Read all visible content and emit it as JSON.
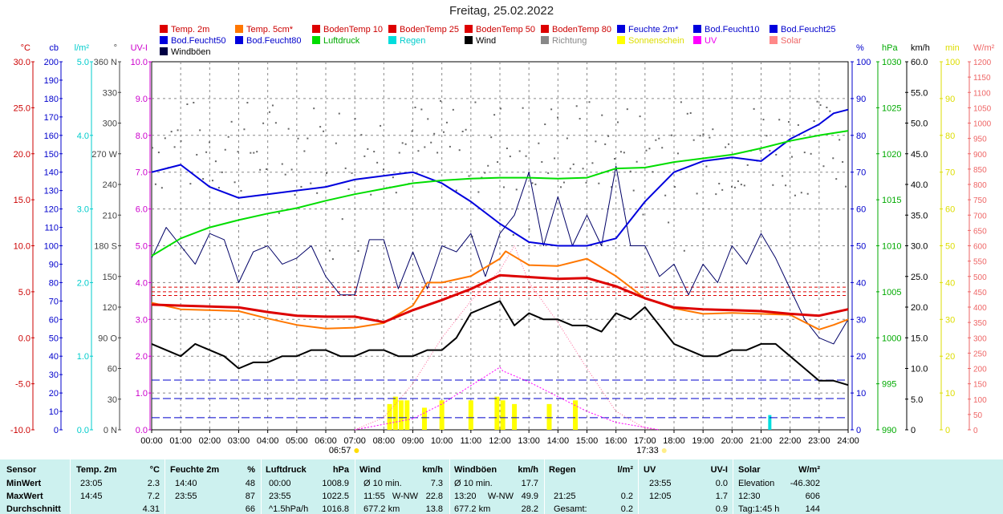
{
  "title": "Freitag, 25.02.2022",
  "legend": [
    {
      "label": "Temp. 2m",
      "color": "#dd0000",
      "text_color": "#cc0000"
    },
    {
      "label": "Temp. 5cm*",
      "color": "#ff7700",
      "text_color": "#cc0000"
    },
    {
      "label": "BodenTemp 10",
      "color": "#dd0000",
      "text_color": "#cc0000"
    },
    {
      "label": "BodenTemp 25",
      "color": "#dd0000",
      "text_color": "#cc0000"
    },
    {
      "label": "BodenTemp 50",
      "color": "#dd0000",
      "text_color": "#cc0000"
    },
    {
      "label": "BodenTemp 80",
      "color": "#dd0000",
      "text_color": "#cc0000"
    },
    {
      "label": "Feuchte 2m*",
      "color": "#0000dd",
      "text_color": "#0000cc"
    },
    {
      "label": "Bod.Feucht10",
      "color": "#0000dd",
      "text_color": "#0000cc"
    },
    {
      "label": "Bod.Feucht25",
      "color": "#0000dd",
      "text_color": "#0000cc"
    },
    {
      "label": "Bod.Feucht50",
      "color": "#0000dd",
      "text_color": "#0000cc"
    },
    {
      "label": "Bod.Feucht80",
      "color": "#0000dd",
      "text_color": "#0000cc"
    },
    {
      "label": "Luftdruck",
      "color": "#00dd00",
      "text_color": "#00aa00"
    },
    {
      "label": "Regen",
      "color": "#00dddd",
      "text_color": "#00cccc"
    },
    {
      "label": "Wind",
      "color": "#000000",
      "text_color": "#000000"
    },
    {
      "label": "Richtung",
      "color": "#888888",
      "text_color": "#888888"
    },
    {
      "label": "Sonnenschein",
      "color": "#ffff00",
      "text_color": "#dddd00"
    },
    {
      "label": "UV",
      "color": "#ff00ff",
      "text_color": "#ee00ee"
    },
    {
      "label": "Solar",
      "color": "#ff8888",
      "text_color": "#ee6666"
    },
    {
      "label": "Windböen",
      "color": "#000044",
      "text_color": "#000000"
    }
  ],
  "axes": {
    "temp": {
      "unit": "°C",
      "ticks": [
        "30.0",
        "25.0",
        "20.0",
        "15.0",
        "10.0",
        "5.0",
        "0.0",
        "-5.0",
        "-10.0"
      ],
      "color": "#cc0000"
    },
    "cb": {
      "unit": "cb",
      "ticks": [
        "200",
        "190",
        "180",
        "170",
        "160",
        "150",
        "140",
        "130",
        "120",
        "110",
        "100",
        "90",
        "80",
        "70",
        "60",
        "50",
        "40",
        "30",
        "20",
        "10",
        "0"
      ],
      "color": "#0000cc"
    },
    "rain": {
      "unit": "l/m²",
      "ticks": [
        "5.0",
        "4.0",
        "3.0",
        "2.0",
        "1.0",
        "0.0"
      ],
      "color": "#00cccc"
    },
    "dir": {
      "unit": "°",
      "ticks": [
        "360 N",
        "330",
        "300",
        "270 W",
        "240",
        "210",
        "180 S",
        "150",
        "120",
        "90 O",
        "60",
        "30",
        "0 N"
      ],
      "color": "#444444"
    },
    "uvi": {
      "unit": "UV-I",
      "ticks": [
        "10.0",
        "9.0",
        "8.0",
        "7.0",
        "6.0",
        "5.0",
        "4.0",
        "3.0",
        "2.0",
        "1.0",
        "0.0"
      ],
      "color": "#cc00cc"
    },
    "hum": {
      "unit": "%",
      "ticks": [
        "100",
        "90",
        "80",
        "70",
        "60",
        "50",
        "40",
        "30",
        "20",
        "10",
        "0"
      ],
      "color": "#0000cc"
    },
    "hpa": {
      "unit": "hPa",
      "ticks": [
        "1030",
        "1025",
        "1020",
        "1015",
        "1010",
        "1005",
        "1000",
        "995",
        "990"
      ],
      "color": "#00aa00"
    },
    "kmh": {
      "unit": "km/h",
      "ticks": [
        "60.0",
        "55.0",
        "50.0",
        "45.0",
        "40.0",
        "35.0",
        "30.0",
        "25.0",
        "20.0",
        "15.0",
        "10.0",
        "5.0",
        "0"
      ],
      "color": "#000000"
    },
    "min": {
      "unit": "min",
      "ticks": [
        "100",
        "90",
        "80",
        "70",
        "60",
        "50",
        "40",
        "30",
        "20",
        "10",
        "0"
      ],
      "color": "#dddd00"
    },
    "solar": {
      "unit": "W/m²",
      "ticks": [
        "1200",
        "1150",
        "1100",
        "1050",
        "1000",
        "950",
        "900",
        "850",
        "800",
        "750",
        "700",
        "650",
        "600",
        "550",
        "500",
        "450",
        "400",
        "350",
        "300",
        "250",
        "200",
        "150",
        "100",
        "50",
        "0"
      ],
      "color": "#ee6666"
    }
  },
  "x_ticks": [
    "00:00",
    "01:00",
    "02:00",
    "03:00",
    "04:00",
    "05:00",
    "06:00",
    "07:00",
    "08:00",
    "09:00",
    "10:00",
    "11:00",
    "12:00",
    "13:00",
    "14:00",
    "15:00",
    "16:00",
    "17:00",
    "18:00",
    "19:00",
    "20:00",
    "21:00",
    "22:00",
    "23:00",
    "24:00"
  ],
  "sunrise": "06:57",
  "sunset": "17:33",
  "chart_data": {
    "type": "line",
    "x_unit": "hour",
    "series": [
      {
        "name": "Temp. 2m",
        "axis": "temp",
        "color": "#dd0000",
        "width": 3,
        "x": [
          0,
          1,
          2,
          3,
          4,
          5,
          6,
          7,
          8,
          9,
          10,
          11,
          12,
          13,
          14,
          15,
          16,
          17,
          18,
          19,
          20,
          21,
          22,
          23,
          24
        ],
        "y": [
          3.6,
          3.5,
          3.4,
          3.3,
          2.8,
          2.4,
          2.3,
          2.3,
          1.7,
          3.0,
          4.1,
          5.3,
          6.8,
          6.6,
          6.4,
          6.5,
          5.6,
          4.3,
          3.3,
          3.1,
          3.0,
          2.9,
          2.6,
          2.4,
          3.1
        ]
      },
      {
        "name": "Temp. 5cm*",
        "axis": "temp",
        "color": "#ff7700",
        "width": 2,
        "x": [
          0,
          1,
          2,
          3,
          4,
          5,
          6,
          7,
          8,
          9,
          9.5,
          10,
          11,
          12,
          12.2,
          13,
          14,
          15,
          16,
          17,
          18,
          19,
          20,
          21,
          22,
          23,
          23.5,
          24
        ],
        "y": [
          3.8,
          3.1,
          3.0,
          2.9,
          2.1,
          1.4,
          1.0,
          1.1,
          1.6,
          3.5,
          6.0,
          6.0,
          6.7,
          8.6,
          9.4,
          7.9,
          7.8,
          8.6,
          6.7,
          4.3,
          3.2,
          2.6,
          2.7,
          2.6,
          2.5,
          0.9,
          1.4,
          2.0
        ]
      },
      {
        "name": "BodenTemp 10",
        "axis": "temp",
        "color": "#dd0000",
        "width": 1,
        "dash": "4,3",
        "x": [
          0,
          24
        ],
        "y": [
          5.5,
          5.5
        ]
      },
      {
        "name": "BodenTemp 25",
        "axis": "temp",
        "color": "#dd0000",
        "width": 1,
        "dash": "4,3",
        "x": [
          0,
          24
        ],
        "y": [
          5.0,
          5.0
        ]
      },
      {
        "name": "BodenTemp 50",
        "axis": "temp",
        "color": "#dd0000",
        "width": 1,
        "dash": "4,3",
        "x": [
          0,
          24
        ],
        "y": [
          4.6,
          4.6
        ]
      },
      {
        "name": "Feuchte 2m*",
        "axis": "hum",
        "color": "#0000dd",
        "width": 2,
        "x": [
          0,
          0.5,
          1,
          2,
          3,
          4,
          5,
          6,
          7,
          8,
          9,
          10,
          11,
          12,
          13,
          14,
          15,
          16,
          17,
          18,
          19,
          20,
          21,
          22,
          23,
          23.5,
          24
        ],
        "y": [
          70,
          71,
          72,
          66,
          63,
          64,
          65,
          66,
          68,
          69,
          70,
          67,
          62,
          56,
          51,
          50,
          50,
          52,
          62,
          70,
          73,
          74,
          73,
          79,
          83,
          86,
          87
        ]
      },
      {
        "name": "Bod.Feucht10",
        "axis": "hum",
        "color": "#0000cc",
        "width": 1,
        "dash": "10,4",
        "x": [
          0,
          24
        ],
        "y": [
          13.5,
          13.5
        ]
      },
      {
        "name": "Bod.Feucht25",
        "axis": "hum",
        "color": "#0000cc",
        "width": 1,
        "dash": "10,4",
        "x": [
          0,
          24
        ],
        "y": [
          8.5,
          8.5
        ]
      },
      {
        "name": "Bod.Feucht50",
        "axis": "hum",
        "color": "#0000cc",
        "width": 1,
        "dash": "10,4",
        "x": [
          0,
          24
        ],
        "y": [
          3.3,
          3.3
        ]
      },
      {
        "name": "Luftdruck",
        "axis": "hpa",
        "color": "#00dd00",
        "width": 2,
        "x": [
          0,
          1,
          2,
          3,
          4,
          5,
          6,
          7,
          8,
          9,
          10,
          11,
          12,
          13,
          14,
          15,
          16,
          17,
          18,
          19,
          20,
          21,
          22,
          23,
          24
        ],
        "y": [
          1008.9,
          1010.8,
          1012.0,
          1012.8,
          1013.5,
          1014.1,
          1014.9,
          1015.6,
          1016.2,
          1016.8,
          1017.1,
          1017.3,
          1017.4,
          1017.4,
          1017.3,
          1017.4,
          1018.4,
          1018.5,
          1019.1,
          1019.5,
          1019.9,
          1020.6,
          1021.4,
          1022.0,
          1022.5
        ]
      },
      {
        "name": "Wind",
        "axis": "kmh",
        "color": "#000000",
        "width": 2,
        "x": [
          0,
          0.5,
          1,
          1.5,
          2,
          2.5,
          3,
          3.5,
          4,
          4.5,
          5,
          5.5,
          6,
          6.5,
          7,
          7.5,
          8,
          8.5,
          9,
          9.5,
          10,
          10.5,
          11,
          11.5,
          12,
          12.5,
          13,
          13.5,
          14,
          14.5,
          15,
          15.5,
          16,
          16.5,
          17,
          17.5,
          18,
          18.5,
          19,
          19.5,
          20,
          20.5,
          21,
          21.5,
          22,
          22.5,
          23,
          23.5,
          24
        ],
        "y": [
          14,
          13,
          12,
          14,
          13,
          12,
          10,
          11,
          11,
          12,
          12,
          13,
          13,
          12,
          12,
          13,
          13,
          12,
          12,
          13,
          13,
          15,
          19,
          20,
          21,
          17,
          19,
          18,
          18,
          17,
          17,
          16,
          19,
          18,
          20,
          17,
          14,
          13,
          12,
          12,
          13,
          13,
          14,
          14,
          12,
          10,
          8,
          8,
          7.3
        ]
      },
      {
        "name": "Windböen",
        "axis": "kmh",
        "color": "#000066",
        "width": 1,
        "x": [
          0,
          0.5,
          1,
          1.5,
          2,
          2.5,
          3,
          3.5,
          4,
          4.5,
          5,
          5.5,
          6,
          6.5,
          7,
          7.5,
          8,
          8.5,
          9,
          9.5,
          10,
          10.5,
          11,
          11.5,
          12,
          12.5,
          13,
          13.5,
          14,
          14.5,
          15,
          15.5,
          16,
          16.5,
          17,
          17.5,
          18,
          18.5,
          19,
          19.5,
          20,
          20.5,
          21,
          21.5,
          22,
          22.5,
          23,
          23.5,
          24
        ],
        "y": [
          28,
          33,
          30,
          27,
          32,
          31,
          24,
          29,
          30,
          27,
          28,
          30,
          25,
          22,
          22,
          31,
          31,
          23,
          29,
          23,
          30,
          29,
          32,
          25,
          32,
          35,
          42,
          30,
          38,
          30,
          35,
          30,
          43,
          30,
          30,
          25,
          27,
          22,
          27,
          24,
          30,
          27,
          32,
          28,
          23,
          18,
          15,
          14,
          18
        ]
      },
      {
        "name": "Solar",
        "axis": "solar",
        "color": "#ff6699",
        "width": 1,
        "dash": "1,2",
        "x": [
          7,
          8,
          9,
          10,
          11,
          12,
          12.5,
          13,
          14,
          15,
          16,
          17,
          17.5
        ],
        "y": [
          0,
          40,
          150,
          300,
          420,
          520,
          600,
          480,
          350,
          200,
          60,
          5,
          0
        ]
      },
      {
        "name": "UV",
        "axis": "uvi",
        "color": "#ff00ff",
        "width": 1,
        "dash": "2,2",
        "x": [
          7,
          9,
          10,
          11,
          12,
          12.1,
          13,
          14,
          15,
          16,
          17.5
        ],
        "y": [
          0,
          0.3,
          0.7,
          1.2,
          1.7,
          1.6,
          1.3,
          0.9,
          0.5,
          0.2,
          0
        ]
      }
    ],
    "direction_points": {
      "axis": "dir",
      "description": "scattered wind direction dots mostly between 230 and 320 degrees"
    },
    "sunshine_minutes": {
      "axis": "min",
      "x": [
        8.2,
        8.4,
        8.6,
        8.8,
        9.4,
        10.0,
        11.0,
        11.9,
        12.1,
        12.5,
        13.7,
        14.6
      ],
      "y": [
        7,
        9,
        8,
        8,
        6,
        8,
        8,
        9,
        8,
        7,
        7,
        8
      ]
    },
    "rain": {
      "axis": "rain",
      "x": [
        21.3
      ],
      "y": [
        0.2
      ]
    },
    "y_ranges": {
      "temp": [
        -10,
        30
      ],
      "hum": [
        0,
        100
      ],
      "hpa": [
        990,
        1030
      ],
      "kmh": [
        0,
        60
      ],
      "solar": [
        0,
        1200
      ],
      "uvi": [
        0,
        10
      ],
      "dir": [
        0,
        360
      ],
      "min": [
        0,
        100
      ],
      "rain": [
        0,
        5
      ]
    }
  },
  "summary": {
    "headers": {
      "sensor": "Sensor",
      "temp": "Temp. 2m",
      "temp_u": "°C",
      "hum": "Feuchte 2m",
      "hum_u": "%",
      "press": "Luftdruck",
      "press_u": "hPa",
      "wind": "Wind",
      "wind_u": "km/h",
      "gust": "Windböen",
      "gust_u": "km/h",
      "rain": "Regen",
      "rain_u": "l/m²",
      "uv": "UV",
      "uv_u": "UV-I",
      "solar": "Solar",
      "solar_u": "W/m²"
    },
    "rows": [
      {
        "label": "MinWert",
        "temp_t": "23:05",
        "temp_v": "2.3",
        "hum_t": "14:40",
        "hum_v": "48",
        "press_t": "00:00",
        "press_v": "1008.9",
        "wind_t": "Ø 10 min.",
        "wind_d": "",
        "wind_v": "7.3",
        "gust_t": "Ø 10 min.",
        "gust_d": "",
        "gust_v": "17.7",
        "rain_t": "",
        "rain_v": "",
        "uv_t": "23:55",
        "uv_v": "0.0",
        "solar_t": "Elevation",
        "solar_v": "-46.302"
      },
      {
        "label": "MaxWert",
        "temp_t": "14:45",
        "temp_v": "7.2",
        "hum_t": "23:55",
        "hum_v": "87",
        "press_t": "23:55",
        "press_v": "1022.5",
        "wind_t": "11:55",
        "wind_d": "W-NW",
        "wind_v": "22.8",
        "gust_t": "13:20",
        "gust_d": "W-NW",
        "gust_v": "49.9",
        "rain_t": "21:25",
        "rain_v": "0.2",
        "uv_t": "12:05",
        "uv_v": "1.7",
        "solar_t": "12:30",
        "solar_v": "606"
      },
      {
        "label": "Durchschnitt",
        "temp_t": "",
        "temp_v": "4.31",
        "hum_t": "",
        "hum_v": "66",
        "press_t": "^1.5hPa/h",
        "press_v": "1016.8",
        "wind_t": "677.2 km",
        "wind_d": "",
        "wind_v": "13.8",
        "gust_t": "677.2 km",
        "gust_d": "",
        "gust_v": "28.2",
        "rain_t": "Gesamt:",
        "rain_v": "0.2",
        "uv_t": "",
        "uv_v": "0.9",
        "solar_t": "Tag:1:45 h",
        "solar_v": "144"
      }
    ]
  }
}
